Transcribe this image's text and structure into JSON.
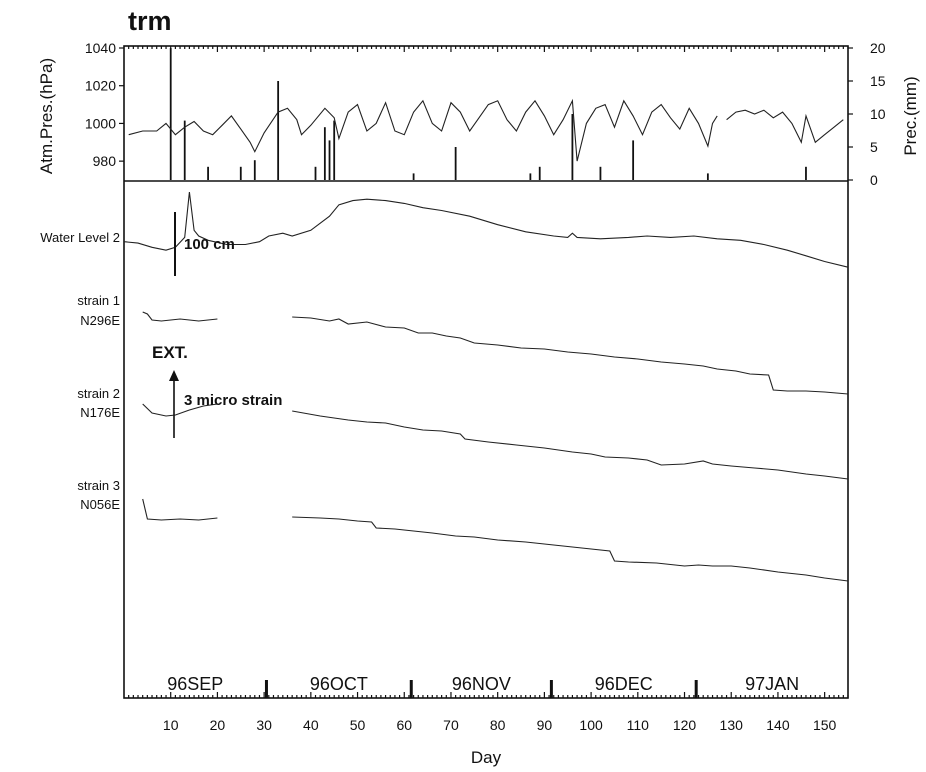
{
  "chart_data": {
    "type": "line",
    "title": "trm",
    "xlabel": "Day",
    "xlim": [
      0,
      155
    ],
    "x_ticks": [
      10,
      20,
      30,
      40,
      50,
      60,
      70,
      80,
      90,
      100,
      110,
      120,
      130,
      140,
      150
    ],
    "months": [
      {
        "label": "96SEP",
        "start": 0,
        "end": 30.5
      },
      {
        "label": "96OCT",
        "start": 30.5,
        "end": 61.5
      },
      {
        "label": "96NOV",
        "start": 61.5,
        "end": 91.5
      },
      {
        "label": "96DEC",
        "start": 91.5,
        "end": 122.5
      },
      {
        "label": "97JAN",
        "start": 122.5,
        "end": 155
      }
    ],
    "top_panel": {
      "left_axis": {
        "label": "Atm.Pres.(hPa)",
        "lim": [
          970,
          1040
        ],
        "ticks": [
          980,
          1000,
          1020,
          1040
        ]
      },
      "right_axis": {
        "label": "Prec.(mm)",
        "lim": [
          0,
          20
        ],
        "ticks": [
          0,
          5,
          10,
          15,
          20
        ]
      },
      "pressure_segments": [
        [
          [
            1,
            994
          ],
          [
            4,
            996
          ],
          [
            7,
            996
          ],
          [
            9,
            1000
          ],
          [
            11,
            994
          ],
          [
            13,
            998
          ],
          [
            15,
            1001
          ],
          [
            17,
            996
          ],
          [
            19,
            994
          ],
          [
            21,
            999
          ],
          [
            23,
            1004
          ],
          [
            25,
            997
          ],
          [
            27,
            990
          ],
          [
            28,
            985
          ],
          [
            30,
            995
          ],
          [
            33,
            1006
          ],
          [
            35,
            1008
          ],
          [
            37,
            1002
          ],
          [
            38,
            994
          ],
          [
            40,
            999
          ],
          [
            43,
            1008
          ],
          [
            45,
            1003
          ],
          [
            46,
            992
          ],
          [
            48,
            1006
          ],
          [
            50,
            1010
          ],
          [
            52,
            996
          ],
          [
            54,
            1000
          ],
          [
            56,
            1011
          ],
          [
            58,
            996
          ],
          [
            60,
            994
          ],
          [
            62,
            1006
          ],
          [
            64,
            1012
          ],
          [
            66,
            1000
          ],
          [
            68,
            996
          ],
          [
            70,
            1011
          ],
          [
            72,
            1006
          ],
          [
            74,
            996
          ],
          [
            76,
            1003
          ],
          [
            78,
            1010
          ],
          [
            80,
            1012
          ],
          [
            82,
            1002
          ],
          [
            84,
            996
          ],
          [
            86,
            1006
          ],
          [
            88,
            1012
          ],
          [
            90,
            1004
          ],
          [
            92,
            994
          ],
          [
            94,
            1002
          ],
          [
            96,
            1012
          ],
          [
            97,
            980
          ],
          [
            99,
            1000
          ],
          [
            101,
            1008
          ],
          [
            103,
            1010
          ],
          [
            105,
            998
          ],
          [
            107,
            1012
          ],
          [
            109,
            1004
          ],
          [
            111,
            994
          ],
          [
            113,
            1006
          ],
          [
            115,
            1010
          ],
          [
            117,
            1003
          ],
          [
            119,
            997
          ],
          [
            121,
            1008
          ],
          [
            123,
            1000
          ],
          [
            125,
            988
          ],
          [
            126,
            1000
          ],
          [
            127,
            1004
          ]
        ],
        [
          [
            129,
            1002
          ],
          [
            131,
            1006
          ],
          [
            133,
            1007
          ],
          [
            135,
            1005
          ],
          [
            137,
            1007
          ],
          [
            139,
            1003
          ],
          [
            141,
            1006
          ],
          [
            143,
            1000
          ],
          [
            145,
            990
          ],
          [
            146,
            1004
          ],
          [
            148,
            990
          ],
          [
            150,
            994
          ],
          [
            152,
            998
          ],
          [
            154,
            1002
          ]
        ]
      ],
      "precip_bars": [
        [
          10,
          20
        ],
        [
          13,
          9
        ],
        [
          18,
          2
        ],
        [
          25,
          2
        ],
        [
          28,
          3
        ],
        [
          33,
          15
        ],
        [
          41,
          2
        ],
        [
          43,
          8
        ],
        [
          44,
          6
        ],
        [
          45,
          9
        ],
        [
          62,
          1
        ],
        [
          71,
          5
        ],
        [
          87,
          1
        ],
        [
          89,
          2
        ],
        [
          96,
          10
        ],
        [
          102,
          2
        ],
        [
          109,
          6
        ],
        [
          125,
          1
        ],
        [
          146,
          2
        ]
      ]
    },
    "traces": [
      {
        "name": "Water Level 2",
        "segments": [
          [
            [
              0,
              120
            ],
            [
              3,
              119
            ],
            [
              6,
              116
            ],
            [
              9,
              114
            ],
            [
              11,
              116
            ],
            [
              13,
              123
            ],
            [
              14,
              155
            ],
            [
              15,
              128
            ],
            [
              16,
              124
            ],
            [
              18,
              121
            ],
            [
              22,
              118
            ],
            [
              26,
              118
            ],
            [
              29,
              120
            ],
            [
              31,
              124
            ],
            [
              34,
              126
            ],
            [
              36,
              124
            ],
            [
              40,
              128
            ],
            [
              44,
              138
            ],
            [
              46,
              146
            ],
            [
              49,
              149
            ],
            [
              52,
              150
            ],
            [
              56,
              149
            ],
            [
              60,
              147
            ],
            [
              64,
              144
            ],
            [
              68,
              142
            ],
            [
              74,
              138
            ],
            [
              80,
              132
            ],
            [
              86,
              127
            ],
            [
              92,
              124
            ],
            [
              95,
              123
            ],
            [
              96,
              126
            ],
            [
              97,
              123
            ],
            [
              102,
              122
            ],
            [
              108,
              123
            ],
            [
              112,
              124
            ],
            [
              117,
              123
            ],
            [
              122,
              124
            ],
            [
              127,
              122
            ],
            [
              132,
              121
            ],
            [
              137,
              118
            ],
            [
              142,
              114
            ],
            [
              146,
              110
            ],
            [
              150,
              106
            ],
            [
              155,
              102
            ]
          ]
        ]
      },
      {
        "name": "strain 1",
        "label2": "N296E",
        "segments": [
          [
            [
              4,
              7.65
            ],
            [
              5,
              7.55
            ],
            [
              6,
              7.25
            ],
            [
              8,
              7.2
            ],
            [
              12,
              7.3
            ],
            [
              16,
              7.2
            ],
            [
              20,
              7.3
            ]
          ],
          [
            [
              36,
              7.4
            ],
            [
              40,
              7.35
            ],
            [
              44,
              7.2
            ],
            [
              46,
              7.3
            ],
            [
              48,
              7.05
            ],
            [
              52,
              7.15
            ],
            [
              56,
              6.9
            ],
            [
              60,
              6.85
            ],
            [
              63,
              6.6
            ],
            [
              66,
              6.6
            ],
            [
              69,
              6.45
            ],
            [
              72,
              6.35
            ],
            [
              75,
              6.1
            ],
            [
              80,
              6.0
            ],
            [
              85,
              5.85
            ],
            [
              90,
              5.8
            ],
            [
              95,
              5.65
            ],
            [
              100,
              5.55
            ],
            [
              105,
              5.4
            ],
            [
              110,
              5.3
            ],
            [
              115,
              5.15
            ],
            [
              120,
              5.05
            ],
            [
              124,
              4.95
            ],
            [
              127,
              4.8
            ],
            [
              131,
              4.7
            ],
            [
              134,
              4.55
            ],
            [
              138,
              4.5
            ],
            [
              139,
              3.75
            ],
            [
              142,
              3.7
            ],
            [
              146,
              3.7
            ],
            [
              150,
              3.65
            ],
            [
              155,
              3.55
            ]
          ]
        ]
      },
      {
        "name": "strain 2",
        "label2": "N176E",
        "segments": [
          [
            [
              4,
              4.05
            ],
            [
              6,
              3.6
            ],
            [
              9,
              3.45
            ],
            [
              11,
              3.5
            ],
            [
              14,
              3.75
            ],
            [
              17,
              3.95
            ],
            [
              20,
              4.05
            ]
          ],
          [
            [
              36,
              3.7
            ],
            [
              42,
              3.45
            ],
            [
              48,
              3.25
            ],
            [
              52,
              3.15
            ],
            [
              56,
              3.1
            ],
            [
              60,
              2.9
            ],
            [
              64,
              2.75
            ],
            [
              68,
              2.7
            ],
            [
              72,
              2.55
            ],
            [
              73,
              2.3
            ],
            [
              78,
              2.15
            ],
            [
              84,
              2.0
            ],
            [
              90,
              1.85
            ],
            [
              96,
              1.65
            ],
            [
              100,
              1.55
            ],
            [
              103,
              1.4
            ],
            [
              108,
              1.35
            ],
            [
              112,
              1.25
            ],
            [
              115,
              1.0
            ],
            [
              120,
              1.05
            ],
            [
              124,
              1.2
            ],
            [
              126,
              1.05
            ],
            [
              130,
              0.95
            ],
            [
              135,
              0.85
            ],
            [
              140,
              0.75
            ],
            [
              146,
              0.55
            ],
            [
              150,
              0.45
            ],
            [
              155,
              0.3
            ]
          ]
        ]
      },
      {
        "name": "strain 3",
        "label2": "N056E",
        "segments": [
          [
            [
              4,
              5.3
            ],
            [
              5,
              4.3
            ],
            [
              8,
              4.25
            ],
            [
              12,
              4.3
            ],
            [
              16,
              4.25
            ],
            [
              20,
              4.35
            ]
          ],
          [
            [
              36,
              4.4
            ],
            [
              42,
              4.35
            ],
            [
              46,
              4.3
            ],
            [
              50,
              4.2
            ],
            [
              53,
              4.15
            ],
            [
              54,
              3.85
            ],
            [
              58,
              3.8
            ],
            [
              62,
              3.7
            ],
            [
              66,
              3.6
            ],
            [
              71,
              3.45
            ],
            [
              75,
              3.4
            ],
            [
              80,
              3.25
            ],
            [
              86,
              3.15
            ],
            [
              92,
              3.0
            ],
            [
              98,
              2.85
            ],
            [
              104,
              2.7
            ],
            [
              105,
              2.2
            ],
            [
              108,
              2.15
            ],
            [
              114,
              2.1
            ],
            [
              118,
              2.0
            ],
            [
              120,
              1.95
            ],
            [
              123,
              2.0
            ],
            [
              126,
              1.95
            ],
            [
              130,
              1.95
            ],
            [
              134,
              1.85
            ],
            [
              140,
              1.65
            ],
            [
              146,
              1.5
            ],
            [
              150,
              1.35
            ],
            [
              155,
              1.2
            ]
          ]
        ]
      }
    ],
    "annotations": [
      "100 cm",
      "EXT.",
      "3 micro strain"
    ]
  }
}
